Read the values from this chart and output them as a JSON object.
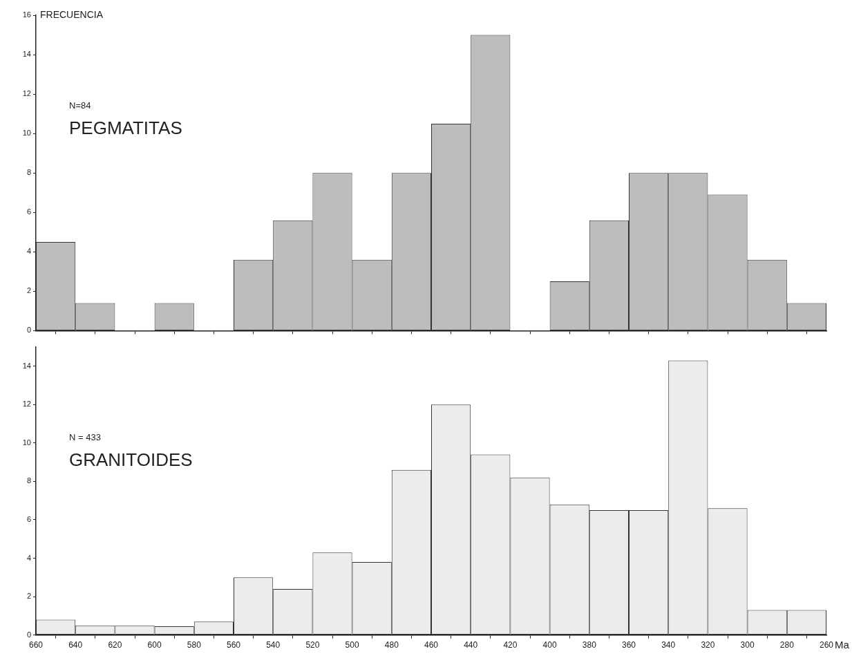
{
  "chart_data": [
    {
      "type": "histogram",
      "ylabel": "FRECUENCIA",
      "annotations": [
        "N=84",
        "PEGMATITAS"
      ],
      "bins": [
        660,
        640,
        620,
        600,
        580,
        560,
        540,
        520,
        500,
        480,
        460,
        440,
        420,
        400,
        380,
        360,
        340,
        320,
        300,
        280,
        260
      ],
      "values": [
        4.5,
        1.4,
        0,
        1.4,
        0,
        3.6,
        5.6,
        8,
        3.6,
        8,
        10.5,
        15,
        0,
        2.5,
        5.6,
        8,
        8,
        6.9,
        3.6,
        1.4
      ],
      "color": "#bdbdbd",
      "xlim": [
        660,
        260
      ],
      "xticks": [
        660,
        640,
        620,
        600,
        580,
        560,
        540,
        520,
        500,
        480,
        460,
        440,
        420,
        400,
        380,
        360,
        340,
        320,
        300,
        280,
        260
      ],
      "ylim": [
        0,
        16
      ],
      "yticks": [
        0,
        2,
        4,
        6,
        8,
        10,
        12,
        14,
        16
      ],
      "tick_labels": "y",
      "grid": false,
      "legend": false
    },
    {
      "type": "histogram",
      "xlabel": "Ma",
      "annotations": [
        "N = 433",
        "GRANITOIDES"
      ],
      "bins": [
        660,
        640,
        620,
        600,
        580,
        560,
        540,
        520,
        500,
        480,
        460,
        440,
        420,
        400,
        380,
        360,
        340,
        320,
        300,
        280,
        260
      ],
      "values": [
        0.8,
        0.5,
        0.5,
        0.45,
        0.7,
        3,
        2.4,
        4.3,
        3.8,
        8.6,
        12,
        9.4,
        8.2,
        6.8,
        6.5,
        6.5,
        14.3,
        6.6,
        1.3,
        1.3
      ],
      "color": "#ececec",
      "xlim": [
        660,
        260
      ],
      "xticks": [
        660,
        640,
        620,
        600,
        580,
        560,
        540,
        520,
        500,
        480,
        460,
        440,
        420,
        400,
        380,
        360,
        340,
        320,
        300,
        280,
        260
      ],
      "ylim": [
        0,
        15
      ],
      "yticks": [
        0,
        2,
        4,
        6,
        8,
        10,
        12,
        14
      ],
      "grid": false,
      "legend": false
    }
  ]
}
